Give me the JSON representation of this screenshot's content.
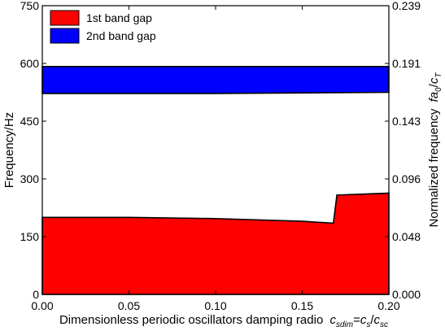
{
  "chart_data": {
    "type": "area",
    "xlabel": "Dimensionless periodic oscillators damping radio",
    "xlabel_math": {
      "c": "c",
      "sdim": "sdim",
      "eq": "=",
      "s": "s",
      "slash": "/",
      "sc": "sc"
    },
    "ylabel": "Frequency/Hz",
    "ylabel_right": "Normalized frequency",
    "ylabel_right_math": {
      "f": "f",
      "a": "a",
      "sub0": "0",
      "slash": "/",
      "c": "c",
      "T": "T"
    },
    "xlim": [
      0,
      0.2
    ],
    "ylim": [
      0,
      750
    ],
    "x_ticks": [
      "0.00",
      "0.05",
      "0.10",
      "0.15",
      "0.20"
    ],
    "y_ticks": [
      "0",
      "150",
      "300",
      "450",
      "600",
      "750"
    ],
    "y_ticks_right": [
      "0.000",
      "0.048",
      "0.096",
      "0.143",
      "0.191",
      "0.239"
    ],
    "legend_position": "top-left",
    "series": [
      {
        "name": "1st band gap",
        "color": "#ff0000",
        "lower": [
          [
            0.0,
            0
          ],
          [
            0.2,
            0
          ]
        ],
        "upper": [
          [
            0.0,
            200
          ],
          [
            0.05,
            200
          ],
          [
            0.1,
            197
          ],
          [
            0.15,
            190
          ],
          [
            0.168,
            185
          ],
          [
            0.17,
            258
          ],
          [
            0.2,
            263
          ]
        ]
      },
      {
        "name": "2nd band gap",
        "color": "#0000ff",
        "lower": [
          [
            0.0,
            522
          ],
          [
            0.1,
            522
          ],
          [
            0.2,
            525
          ]
        ],
        "upper": [
          [
            0.0,
            592
          ],
          [
            0.2,
            592
          ]
        ]
      }
    ]
  }
}
